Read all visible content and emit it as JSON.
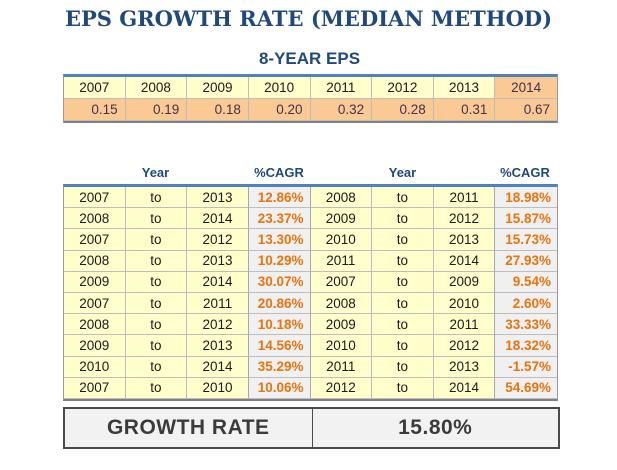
{
  "title": "EPS GROWTH RATE (MEDIAN METHOD)",
  "eps_table": {
    "title": "8-YEAR EPS",
    "years": [
      "2007",
      "2008",
      "2009",
      "2010",
      "2011",
      "2012",
      "2013",
      "2014"
    ],
    "values": [
      "0.15",
      "0.19",
      "0.18",
      "0.20",
      "0.32",
      "0.28",
      "0.31",
      "0.67"
    ]
  },
  "cagr_section": {
    "year_header": "Year",
    "cagr_header": "%CAGR",
    "to_word": "to",
    "left_rows": [
      {
        "from": "2007",
        "to": "2013",
        "cagr": "12.86%"
      },
      {
        "from": "2008",
        "to": "2014",
        "cagr": "23.37%"
      },
      {
        "from": "2007",
        "to": "2012",
        "cagr": "13.30%"
      },
      {
        "from": "2008",
        "to": "2013",
        "cagr": "10.29%"
      },
      {
        "from": "2009",
        "to": "2014",
        "cagr": "30.07%"
      },
      {
        "from": "2007",
        "to": "2011",
        "cagr": "20.86%"
      },
      {
        "from": "2008",
        "to": "2012",
        "cagr": "10.18%"
      },
      {
        "from": "2009",
        "to": "2013",
        "cagr": "14.56%"
      },
      {
        "from": "2010",
        "to": "2014",
        "cagr": "35.29%"
      },
      {
        "from": "2007",
        "to": "2010",
        "cagr": "10.06%"
      }
    ],
    "right_rows": [
      {
        "from": "2008",
        "to": "2011",
        "cagr": "18.98%"
      },
      {
        "from": "2009",
        "to": "2012",
        "cagr": "15.87%"
      },
      {
        "from": "2010",
        "to": "2013",
        "cagr": "15.73%"
      },
      {
        "from": "2011",
        "to": "2014",
        "cagr": "27.93%"
      },
      {
        "from": "2007",
        "to": "2009",
        "cagr": "9.54%"
      },
      {
        "from": "2008",
        "to": "2010",
        "cagr": "2.60%"
      },
      {
        "from": "2009",
        "to": "2011",
        "cagr": "33.33%"
      },
      {
        "from": "2010",
        "to": "2012",
        "cagr": "18.32%"
      },
      {
        "from": "2011",
        "to": "2013",
        "cagr": "-1.57%"
      },
      {
        "from": "2012",
        "to": "2014",
        "cagr": "54.69%"
      }
    ]
  },
  "growth": {
    "label": "GROWTH RATE",
    "value": "15.80%"
  },
  "colors": {
    "title_blue": "#1F497D",
    "table_top_border_blue": "#4F81BD",
    "year_cell_yellow": "#FFFFCC",
    "eps_cell_peach": "#FBC993",
    "eps_value_plum": "#403152",
    "cagr_value_orange": "#E9730C",
    "cagr_cell_gray": "#F0F0F0",
    "growth_bar_gray": "#F2F2F2",
    "growth_text_charcoal": "#3b3b3b"
  }
}
